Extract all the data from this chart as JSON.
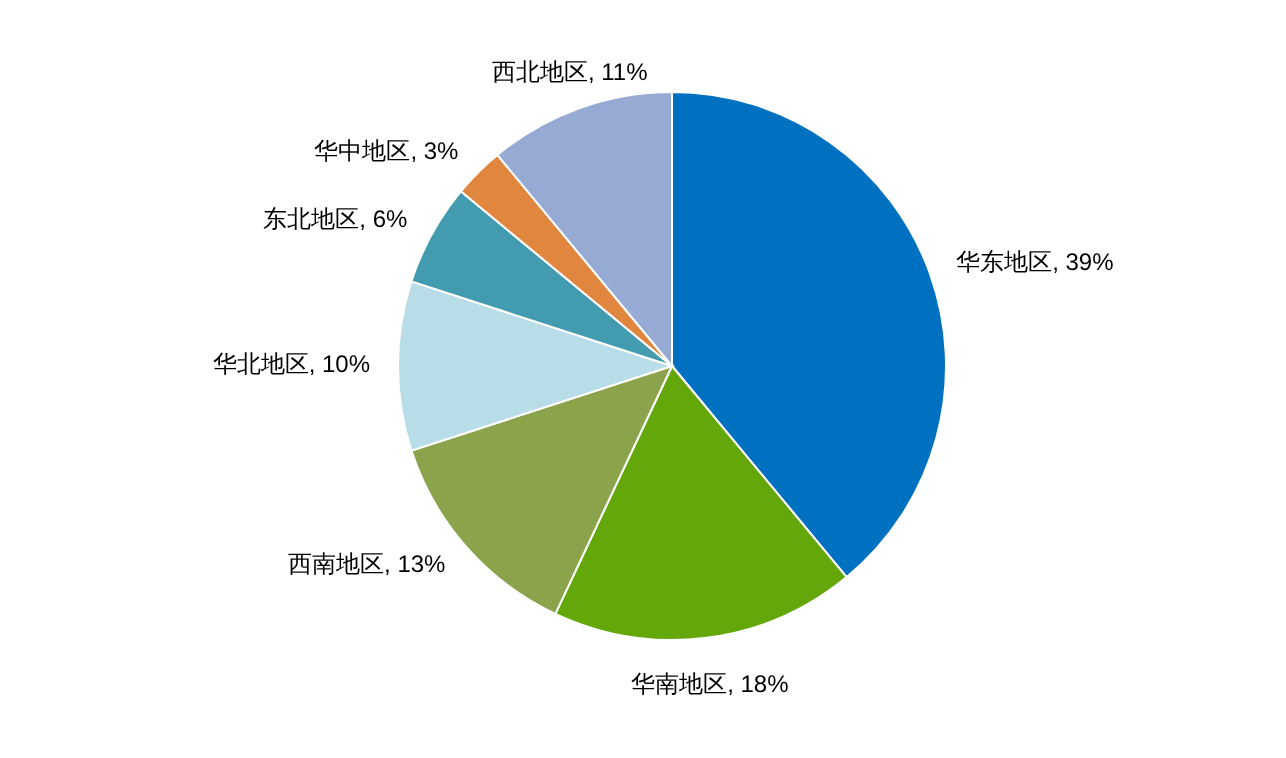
{
  "chart_data": {
    "type": "pie",
    "categories": [
      "华东地区",
      "华南地区",
      "西南地区",
      "华北地区",
      "东北地区",
      "华中地区",
      "西北地区"
    ],
    "values": [
      39,
      18,
      13,
      10,
      6,
      3,
      11
    ],
    "value_labels": [
      "39%",
      "18%",
      "13%",
      "10%",
      "6%",
      "3%",
      "11%"
    ],
    "colors": [
      "#0070c0",
      "#63a70a",
      "#8ba44c",
      "#b8dde8",
      "#439bb0",
      "#e0863f",
      "#96aad4"
    ]
  }
}
